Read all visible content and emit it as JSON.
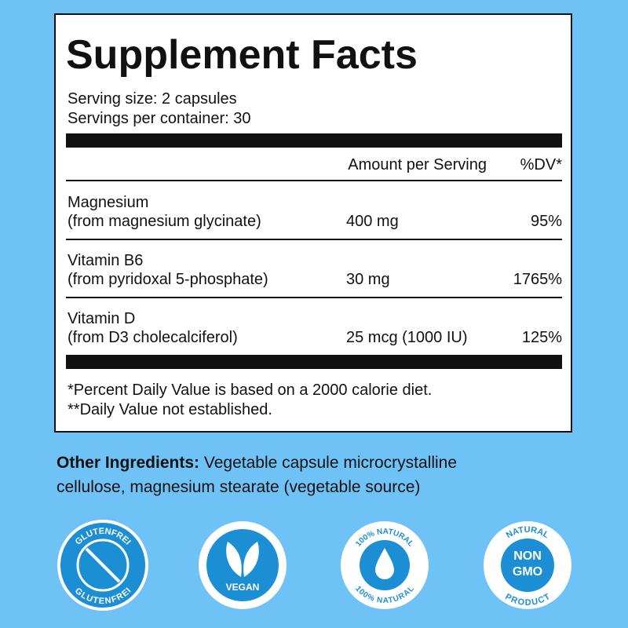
{
  "facts": {
    "title": "Supplement Facts",
    "serving_size": "Serving size: 2 capsules",
    "servings_per_container": "Servings per container: 30",
    "header": {
      "amount": "Amount per Serving",
      "dv": "%DV*"
    },
    "rows": [
      {
        "name": "Magnesium",
        "source": "(from magnesium glycinate)",
        "amount": "400 mg",
        "dv": "95%"
      },
      {
        "name": "Vitamin B6",
        "source": "(from pyridoxal 5-phosphate)",
        "amount": "30 mg",
        "dv": "1765%"
      },
      {
        "name": "Vitamin D",
        "source": "(from D3 cholecalciferol)",
        "amount": "25 mcg (1000 IU)",
        "dv": "125%"
      }
    ],
    "footnotes": [
      "*Percent Daily Value is based on a 2000 calorie diet.",
      "**Daily Value not established."
    ]
  },
  "other_ingredients": {
    "label": "Other Ingredients:",
    "line1": "Vegetable capsule microcrystalline",
    "line2": "cellulose, magnesium stearate (vegetable source)"
  },
  "badges": {
    "gluten_free": {
      "top": "GLUTENFREI",
      "bottom": "GLUTENFREI"
    },
    "vegan": {
      "label": "VEGAN"
    },
    "natural": {
      "top": "100% NATURAL",
      "bottom": "100% NATURAL"
    },
    "non_gmo": {
      "top": "NATURAL",
      "non": "NON",
      "gmo": "GMO",
      "bottom": "PRODUCT"
    }
  }
}
